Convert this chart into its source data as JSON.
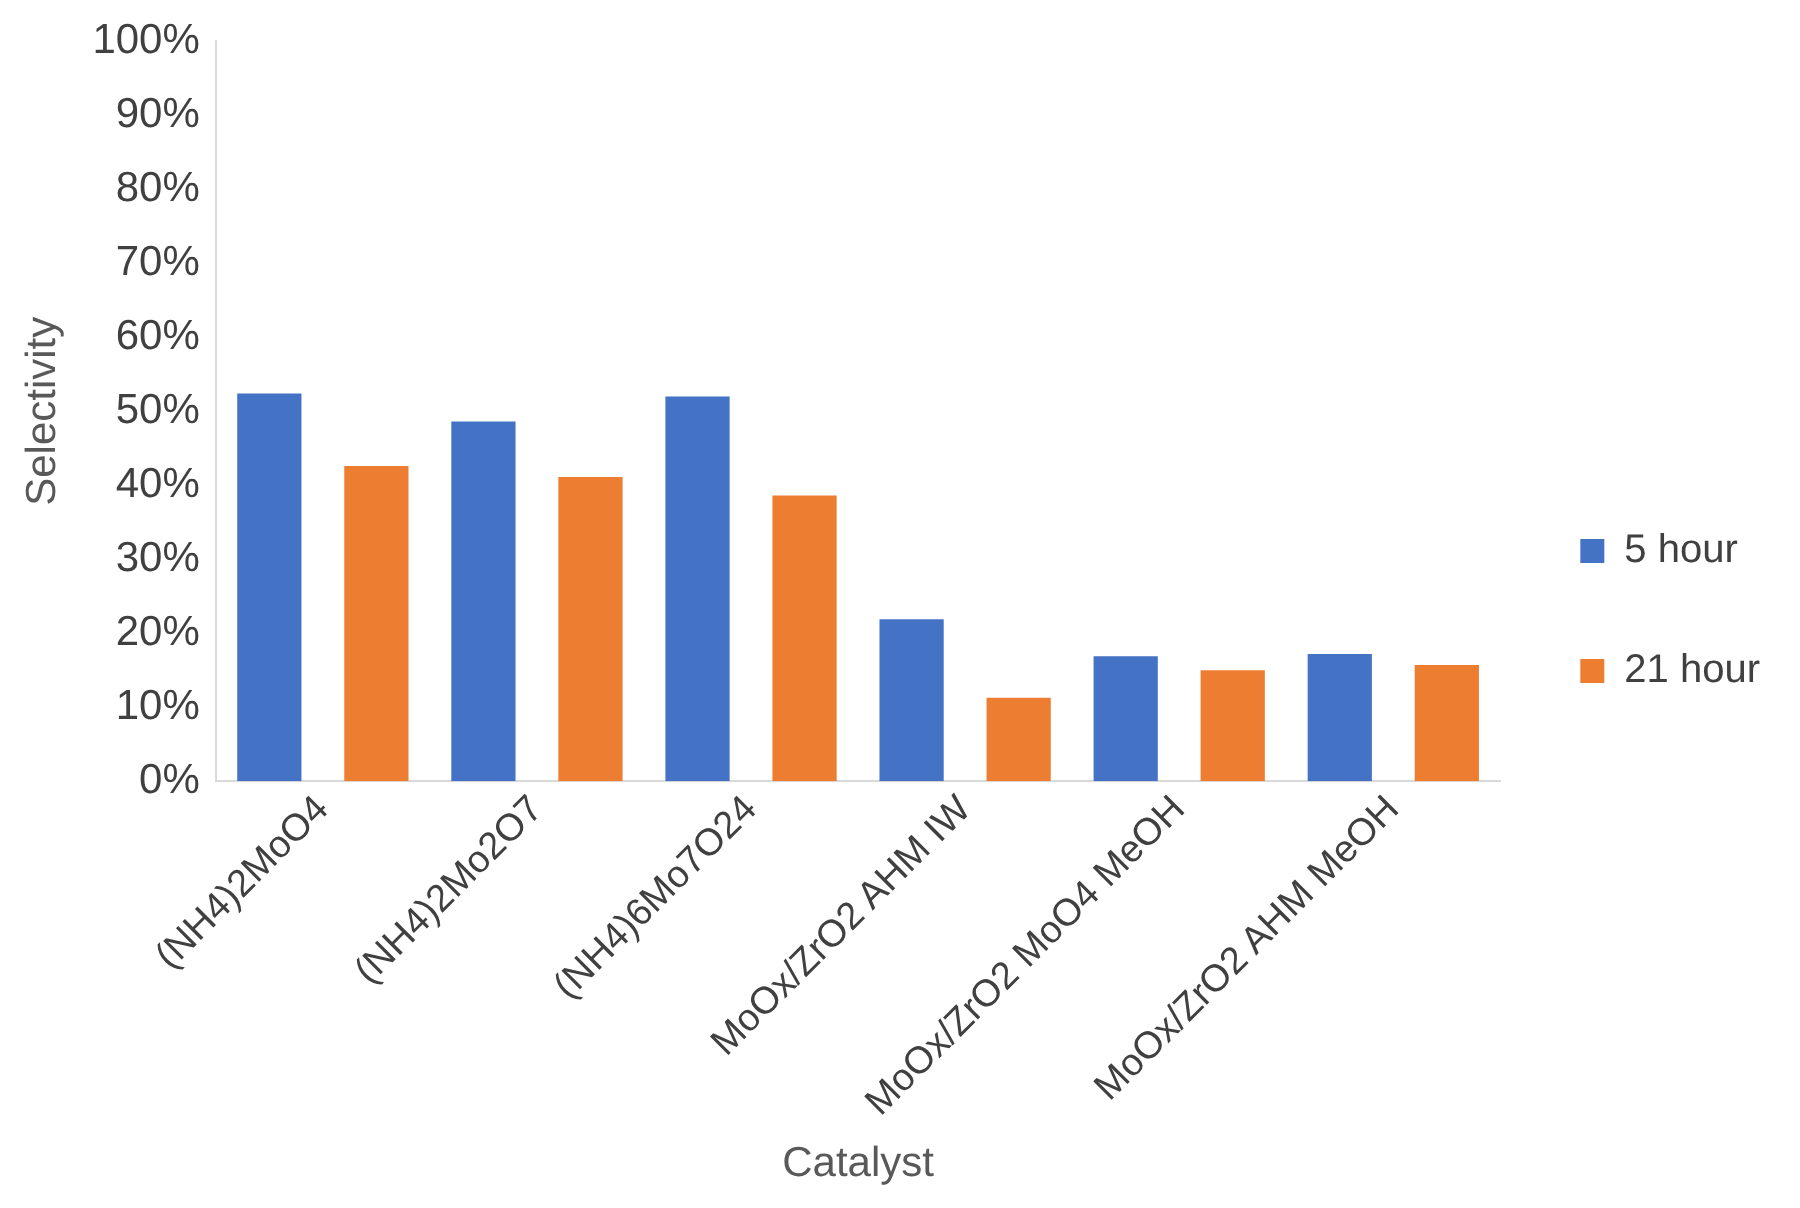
{
  "chart_data": {
    "type": "bar",
    "xlabel": "Catalyst",
    "ylabel": "Selectivity",
    "categories": [
      "(NH4)2MoO4",
      "(NH4)2Mo2O7",
      "(NH4)6Mo7O24",
      "MoOx/ZrO2 AHM IW",
      "MoOx/ZrO2 MoO4 MeOH",
      "MoOx/ZrO2 AHM MeOH"
    ],
    "series": [
      {
        "name": "5 hour",
        "color": "#4472c4",
        "values": [
          52.4,
          48.6,
          52.0,
          21.9,
          16.9,
          17.2
        ]
      },
      {
        "name": "21 hour",
        "color": "#ed7d31",
        "values": [
          42.6,
          41.1,
          38.6,
          11.3,
          15.0,
          15.7
        ]
      }
    ],
    "ylim": [
      0,
      100
    ],
    "yticks": [
      {
        "value": 0,
        "label": "0%"
      },
      {
        "value": 10,
        "label": "10%"
      },
      {
        "value": 20,
        "label": "20%"
      },
      {
        "value": 30,
        "label": "30%"
      },
      {
        "value": 40,
        "label": "40%"
      },
      {
        "value": 50,
        "label": "50%"
      },
      {
        "value": 60,
        "label": "60%"
      },
      {
        "value": 70,
        "label": "70%"
      },
      {
        "value": 80,
        "label": "80%"
      },
      {
        "value": 90,
        "label": "90%"
      },
      {
        "value": 100,
        "label": "100%"
      }
    ],
    "grid": false,
    "legend": "right"
  }
}
